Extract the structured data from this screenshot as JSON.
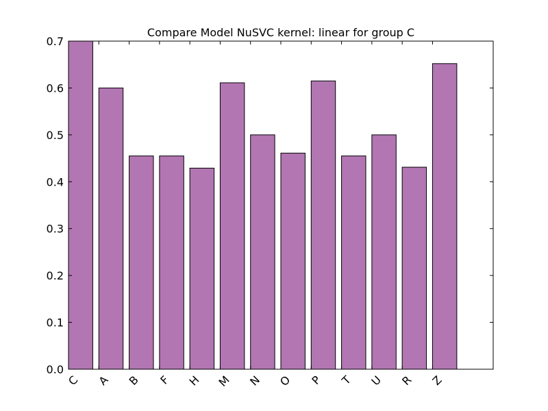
{
  "chart_data": {
    "type": "bar",
    "title": "Compare Model NuSVC kernel: linear for group C",
    "xlabel": "",
    "ylabel": "",
    "categories": [
      "C",
      "A",
      "B",
      "F",
      "H",
      "M",
      "N",
      "O",
      "P",
      "T",
      "U",
      "R",
      "Z"
    ],
    "values": [
      0.7,
      0.6,
      0.455,
      0.455,
      0.429,
      0.611,
      0.5,
      0.461,
      0.615,
      0.455,
      0.5,
      0.431,
      0.652
    ],
    "ylim": [
      0,
      0.7
    ],
    "yticks": [
      "0.0",
      "0.1",
      "0.2",
      "0.3",
      "0.4",
      "0.5",
      "0.6",
      "0.7"
    ],
    "xlim": [
      0,
      14
    ],
    "bar_color": "#b276b2",
    "bar_edge_color": "#000000",
    "grid": false,
    "legend": "none"
  }
}
